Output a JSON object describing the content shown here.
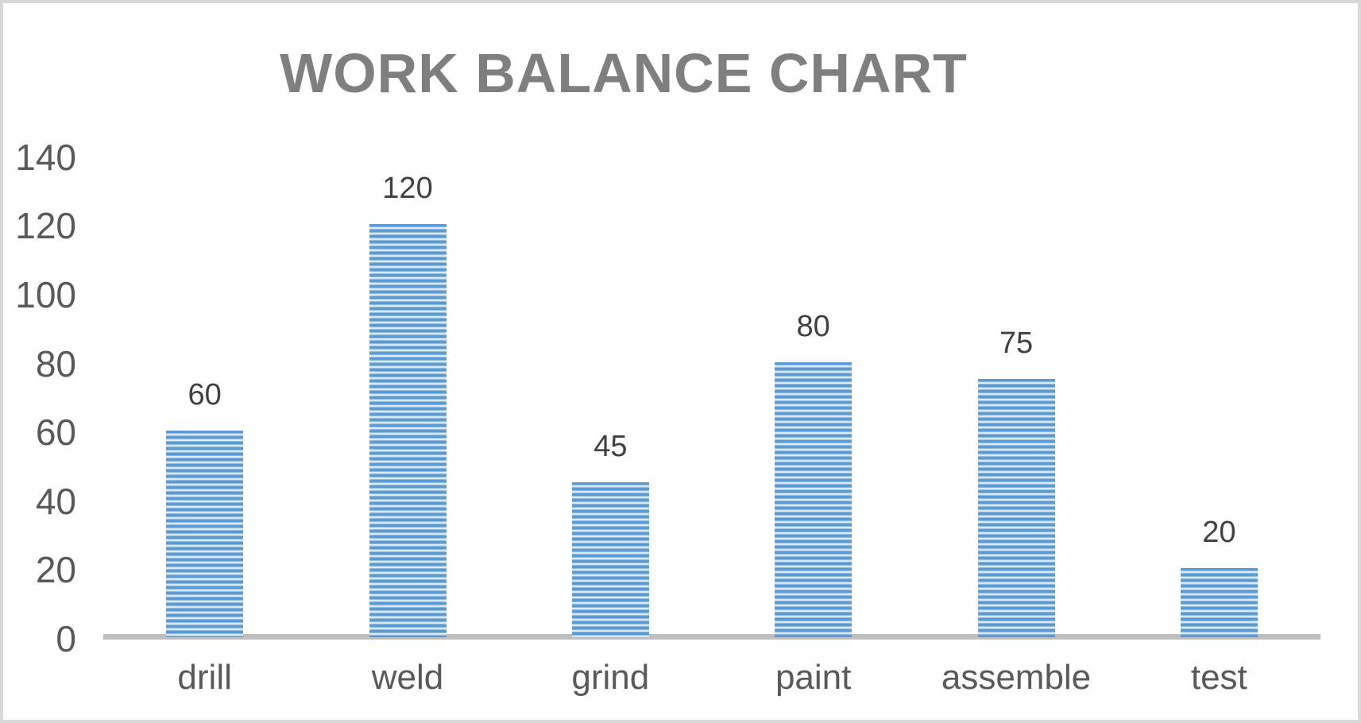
{
  "chart_data": {
    "type": "bar",
    "title": "WORK BALANCE CHART",
    "categories": [
      "drill",
      "weld",
      "grind",
      "paint",
      "assemble",
      "test"
    ],
    "values": [
      60,
      120,
      45,
      80,
      75,
      20
    ],
    "data_labels": [
      "60",
      "120",
      "45",
      "80",
      "75",
      "20"
    ],
    "y_ticks": [
      0,
      20,
      40,
      60,
      80,
      100,
      120,
      140
    ],
    "ylim": [
      0,
      140
    ],
    "xlabel": "",
    "ylabel": "",
    "grid": false,
    "legend": "none",
    "bar_fill_style": "horizontal-stripes"
  },
  "colors": {
    "title_color": "#7f7f7f",
    "tick_label_color": "#595959",
    "category_label_color": "#595959",
    "data_label_color": "#404040",
    "axis_line_color": "#bfbfbf",
    "border_color": "#d9d9d9",
    "bar_stripe_dark": "#5b9bd5",
    "bar_stripe_mid": "#c9ddf0",
    "bar_stripe_light": "#eef5fc",
    "bg_color": "#ffffff"
  }
}
